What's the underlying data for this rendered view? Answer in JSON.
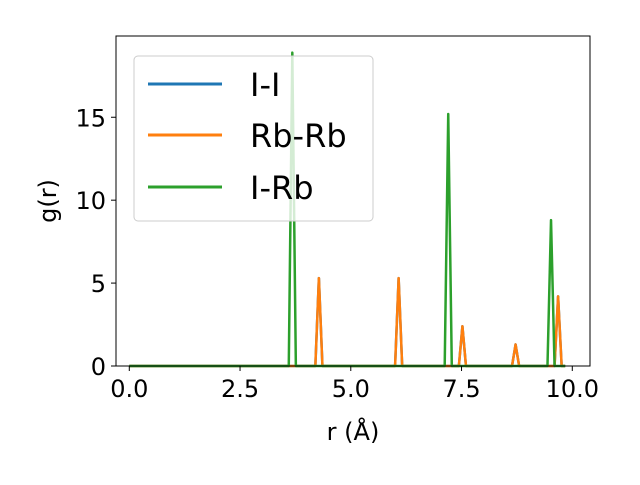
{
  "chart_data": {
    "type": "line",
    "xlabel": "r (Å)",
    "ylabel": "g(r)",
    "xlim": [
      -0.3,
      10.4
    ],
    "ylim": [
      0,
      19.9
    ],
    "xticks": [
      0.0,
      2.5,
      5.0,
      7.5,
      10.0
    ],
    "xtick_labels": [
      "0.0",
      "2.5",
      "5.0",
      "7.5",
      "10.0"
    ],
    "yticks": [
      0,
      5,
      10,
      15
    ],
    "ytick_labels": [
      "0",
      "5",
      "10",
      "15"
    ],
    "grid": false,
    "legend_position": "top-left",
    "series": [
      {
        "name": "I-I",
        "color": "#1f77b4",
        "x": [
          0.0,
          4.2,
          4.28,
          4.36,
          6.0,
          6.08,
          6.16,
          7.44,
          7.52,
          7.6,
          8.64,
          8.72,
          8.8,
          9.6,
          9.68,
          9.76,
          9.84
        ],
        "y": [
          0,
          0,
          5.3,
          0,
          0,
          5.3,
          0,
          0,
          2.4,
          0,
          0,
          1.3,
          0,
          0,
          4.2,
          0,
          0
        ]
      },
      {
        "name": "Rb-Rb",
        "color": "#ff7f0e",
        "x": [
          0.0,
          4.2,
          4.28,
          4.36,
          6.0,
          6.08,
          6.16,
          7.44,
          7.52,
          7.6,
          8.64,
          8.72,
          8.8,
          9.6,
          9.68,
          9.76,
          9.84
        ],
        "y": [
          0,
          0,
          5.3,
          0,
          0,
          5.3,
          0,
          0,
          2.4,
          0,
          0,
          1.3,
          0,
          0,
          4.2,
          0,
          0
        ]
      },
      {
        "name": "I-Rb",
        "color": "#2ca02c",
        "x": [
          0.0,
          3.6,
          3.68,
          3.76,
          7.12,
          7.2,
          7.28,
          9.44,
          9.52,
          9.6,
          9.84
        ],
        "y": [
          0,
          0,
          18.9,
          0,
          0,
          15.2,
          0,
          0,
          8.8,
          0,
          0
        ]
      }
    ]
  }
}
